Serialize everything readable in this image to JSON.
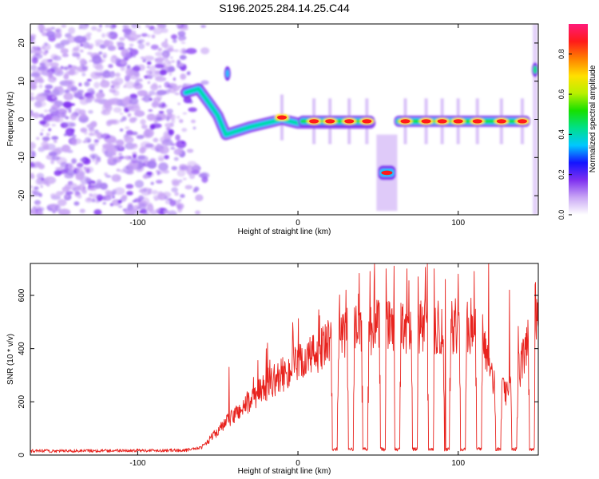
{
  "title": "S196.2025.284.14.25.C44",
  "chart_data": [
    {
      "type": "heatmap",
      "xlabel": "Height of straight line (km)",
      "ylabel": "Frequency (Hz)",
      "xlim": [
        -167,
        150
      ],
      "ylim": [
        -25,
        25
      ],
      "x_ticks": [
        -100,
        0,
        100
      ],
      "y_ticks": [
        -20,
        -10,
        0,
        10,
        20
      ],
      "colorbar": {
        "label": "Normalized spectral amplitude",
        "range": [
          0,
          0.95
        ],
        "ticks": [
          0.0,
          0.2,
          0.4,
          0.6,
          0.8
        ],
        "colors": [
          "#ffffff",
          "#c9a6f5",
          "#7f30f0",
          "#1414ff",
          "#00c8ff",
          "#00e08a",
          "#16e000",
          "#b8f000",
          "#ffe000",
          "#ff8000",
          "#ff1a1a",
          "#ff1a7a"
        ]
      },
      "features": {
        "noise_region_x": [
          -167,
          -70
        ],
        "drift_segment": [
          {
            "x": -70,
            "y": 7
          },
          {
            "x": -62,
            "y": 8
          },
          {
            "x": -55,
            "y": 4
          },
          {
            "x": -50,
            "y": 1
          },
          {
            "x": -45,
            "y": -4
          },
          {
            "x": -30,
            "y": -2
          },
          {
            "x": -10,
            "y": 0
          },
          {
            "x": 0,
            "y": -1
          },
          {
            "x": 45,
            "y": -1
          }
        ],
        "signal_band_segments": [
          {
            "x0": 0,
            "x1": 48,
            "y": -0.5
          },
          {
            "x0": 60,
            "x1": 145,
            "y": -0.5
          }
        ],
        "offset_burst": {
          "x0": 50,
          "x1": 61,
          "y": -14
        },
        "upper_burst": {
          "x": -44,
          "y": 12
        },
        "right_edge_burst": {
          "x": 148,
          "y": 13
        },
        "peaks": [
          {
            "x": -10,
            "y": 0.5
          },
          {
            "x": 10,
            "y": -0.5
          },
          {
            "x": 20,
            "y": -0.5
          },
          {
            "x": 32,
            "y": -0.5
          },
          {
            "x": 43,
            "y": -0.5
          },
          {
            "x": 67,
            "y": -0.5
          },
          {
            "x": 80,
            "y": -0.5
          },
          {
            "x": 90,
            "y": -0.5
          },
          {
            "x": 100,
            "y": -0.5
          },
          {
            "x": 112,
            "y": -0.5
          },
          {
            "x": 127,
            "y": -0.5
          },
          {
            "x": 140,
            "y": -0.5
          }
        ]
      }
    },
    {
      "type": "line",
      "xlabel": "Height of straight line (km)",
      "ylabel": "SNR (10 * v/v)",
      "xlim": [
        -167,
        150
      ],
      "ylim": [
        0,
        720
      ],
      "x_ticks": [
        -100,
        0,
        100
      ],
      "y_ticks": [
        0,
        200,
        400,
        600
      ],
      "line_color": "#e8231e",
      "series": [
        {
          "envelope_x": [
            -167,
            -70,
            -60,
            -50,
            -40,
            -30,
            -20,
            -10,
            0,
            10,
            20,
            30,
            40,
            50,
            60,
            70,
            80,
            90,
            100,
            110,
            115,
            120,
            125,
            130,
            135,
            140,
            145,
            150
          ],
          "envelope_y": [
            15,
            18,
            30,
            90,
            150,
            200,
            260,
            300,
            340,
            380,
            420,
            450,
            470,
            480,
            480,
            485,
            480,
            470,
            480,
            490,
            460,
            300,
            250,
            240,
            260,
            350,
            470,
            500
          ],
          "dropouts_x": [
            23,
            33,
            42,
            53,
            62,
            73,
            83,
            93,
            103,
            113,
            125,
            135,
            146
          ],
          "spikes": [
            {
              "x": -43,
              "y": 330
            },
            {
              "x": 30,
              "y": 620
            },
            {
              "x": 45,
              "y": 690
            },
            {
              "x": 55,
              "y": 700
            },
            {
              "x": 60,
              "y": 710
            },
            {
              "x": 68,
              "y": 700
            },
            {
              "x": 75,
              "y": 670
            },
            {
              "x": 85,
              "y": 700
            },
            {
              "x": 92,
              "y": 660
            },
            {
              "x": 100,
              "y": 680
            },
            {
              "x": 110,
              "y": 690
            },
            {
              "x": 119,
              "y": 718
            },
            {
              "x": 132,
              "y": 620
            },
            {
              "x": 148,
              "y": 640
            }
          ]
        }
      ]
    }
  ]
}
